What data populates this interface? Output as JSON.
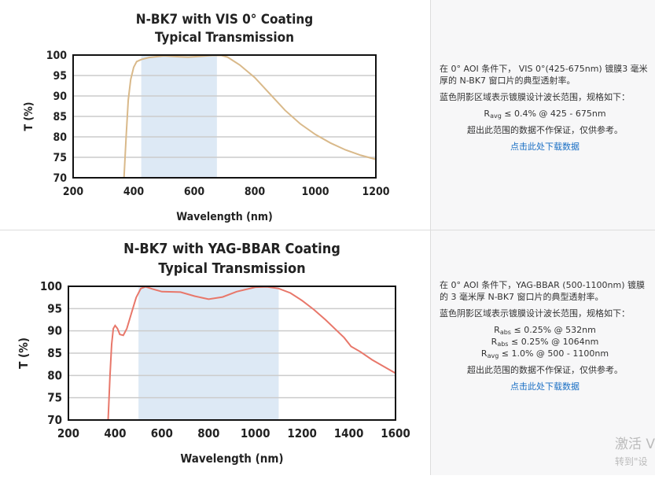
{
  "chart_data": [
    {
      "type": "line",
      "title": [
        "N-BK7 with VIS 0° Coating",
        "Typical Transmission"
      ],
      "xlabel": "Wavelength (nm)",
      "ylabel": "T (%)",
      "xlim": [
        200,
        1200
      ],
      "ylim": [
        70,
        100
      ],
      "xticks": [
        "200",
        "400",
        "600",
        "800",
        "1000",
        "1200"
      ],
      "yticks": [
        "70",
        "75",
        "80",
        "85",
        "90",
        "95",
        "100"
      ],
      "grid": "horizontal",
      "shaded_band": [
        425,
        675
      ],
      "band_color": "#dde9f5",
      "line_color": "#d9b98a",
      "x": [
        368,
        375,
        382,
        390,
        400,
        410,
        425,
        450,
        500,
        550,
        580,
        620,
        660,
        690,
        710,
        750,
        800,
        850,
        900,
        950,
        1000,
        1050,
        1100,
        1150,
        1200
      ],
      "y": [
        70,
        80,
        89,
        94,
        97,
        98.4,
        98.9,
        99.4,
        99.8,
        99.6,
        99.5,
        99.7,
        99.9,
        99.9,
        99.5,
        97.6,
        94.5,
        90.5,
        86.5,
        83.2,
        80.6,
        78.5,
        76.8,
        75.5,
        74.5
      ]
    },
    {
      "type": "line",
      "title": [
        "N-BK7 with YAG-BBAR Coating",
        "Typical Transmission"
      ],
      "xlabel": "Wavelength (nm)",
      "ylabel": "T (%)",
      "xlim": [
        200,
        1600
      ],
      "ylim": [
        70,
        100
      ],
      "xticks": [
        "200",
        "400",
        "600",
        "800",
        "1000",
        "1200",
        "1400",
        "1600"
      ],
      "yticks": [
        "70",
        "75",
        "80",
        "85",
        "90",
        "95",
        "100"
      ],
      "grid": "horizontal",
      "shaded_band": [
        500,
        1100
      ],
      "band_color": "#dde9f5",
      "line_color": "#e8776a",
      "x": [
        370,
        378,
        385,
        392,
        400,
        410,
        420,
        435,
        450,
        470,
        490,
        510,
        530,
        560,
        600,
        680,
        740,
        800,
        860,
        920,
        1000,
        1050,
        1100,
        1150,
        1200,
        1250,
        1300,
        1350,
        1380,
        1410,
        1450,
        1500,
        1550,
        1600
      ],
      "y": [
        70,
        80,
        87,
        90.5,
        91.2,
        90.5,
        89.2,
        89,
        90.5,
        94,
        97.5,
        99.5,
        99.9,
        99.4,
        98.8,
        98.7,
        97.8,
        97.1,
        97.6,
        98.8,
        99.8,
        99.9,
        99.5,
        98.5,
        96.8,
        94.8,
        92.5,
        90,
        88.5,
        86.5,
        85.3,
        83.5,
        82,
        80.5
      ]
    }
  ],
  "panels": [
    {
      "desc": "在 0° AOI 条件下， VIS 0°(425-675nm) 镀膜3 毫米厚的 N-BK7 窗口片的典型透射率。",
      "band_note": "蓝色阴影区域表示镀膜设计波长范围，规格如下：",
      "specs": [
        {
          "sym": "R",
          "sub": "avg",
          "text": " ≤ 0.4% @ 425 - 675nm"
        }
      ],
      "disclaimer": "超出此范围的数据不作保证，仅供参考。",
      "link": "点击此处下载数据"
    },
    {
      "desc": "在 0° AOI 条件下，YAG-BBAR (500-1100nm) 镀膜的 3 毫米厚 N-BK7 窗口片的典型透射率。",
      "band_note": "蓝色阴影区域表示镀膜设计波长范围，规格如下：",
      "specs": [
        {
          "sym": "R",
          "sub": "abs",
          "text": " ≤ 0.25% @ 532nm"
        },
        {
          "sym": "R",
          "sub": "abs",
          "text": " ≤ 0.25% @ 1064nm"
        },
        {
          "sym": "R",
          "sub": "avg",
          "text": " ≤ 1.0% @ 500 - 1100nm"
        }
      ],
      "disclaimer": "超出此范围的数据不作保证，仅供参考。",
      "link": "点击此处下载数据"
    }
  ],
  "watermark": {
    "line1": "激活 V",
    "line2": "转到\"设"
  }
}
